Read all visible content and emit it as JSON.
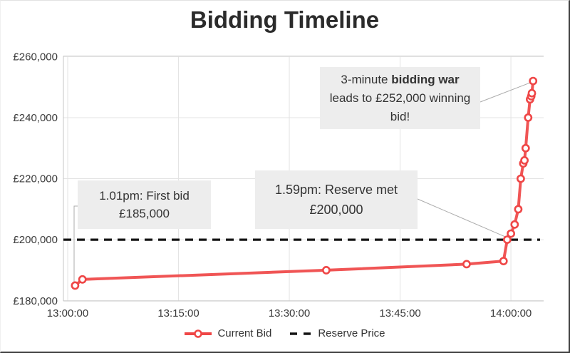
{
  "window": {
    "title": "Bidding Timeline"
  },
  "chart_data": {
    "type": "line",
    "title": "Bidding Timeline",
    "x_axis": {
      "ticks": [
        {
          "label": "13:00:00",
          "minutes": 0
        },
        {
          "label": "13:15:00",
          "minutes": 15
        },
        {
          "label": "13:30:00",
          "minutes": 30
        },
        {
          "label": "13:45:00",
          "minutes": 45
        },
        {
          "label": "14:00:00",
          "minutes": 60
        }
      ],
      "range_minutes": [
        -0.6,
        64.4
      ]
    },
    "y_axis": {
      "ticks": [
        {
          "label": "£180,000",
          "value": 180000
        },
        {
          "label": "£200,000",
          "value": 200000
        },
        {
          "label": "£220,000",
          "value": 220000
        },
        {
          "label": "£240,000",
          "value": 240000
        },
        {
          "label": "£260,000",
          "value": 260000
        }
      ],
      "range": [
        180000,
        260000
      ]
    },
    "grid": true,
    "legend_position": "bottom",
    "series": [
      {
        "name": "Current Bid",
        "color": "#ef4646",
        "marker": "open-circle",
        "points": [
          {
            "t": "13:01:00",
            "value": 185000
          },
          {
            "t": "13:02:00",
            "value": 187000
          },
          {
            "t": "13:35:00",
            "value": 190000
          },
          {
            "t": "13:54:00",
            "value": 192000
          },
          {
            "t": "13:59:00",
            "value": 193000
          },
          {
            "t": "13:59:30",
            "value": 200000
          },
          {
            "t": "14:00:00",
            "value": 202000
          },
          {
            "t": "14:00:30",
            "value": 205000
          },
          {
            "t": "14:01:00",
            "value": 210000
          },
          {
            "t": "14:01:20",
            "value": 220000
          },
          {
            "t": "14:01:40",
            "value": 225000
          },
          {
            "t": "14:01:50",
            "value": 226000
          },
          {
            "t": "14:02:00",
            "value": 230000
          },
          {
            "t": "14:02:20",
            "value": 240000
          },
          {
            "t": "14:02:35",
            "value": 246000
          },
          {
            "t": "14:02:45",
            "value": 247000
          },
          {
            "t": "14:02:50",
            "value": 248000
          },
          {
            "t": "14:03:00",
            "value": 252000
          }
        ]
      }
    ],
    "reserve_line": {
      "name": "Reserve Price",
      "value": 200000,
      "color": "#141414",
      "style": "dashed"
    },
    "annotations": [
      {
        "id": "first-bid",
        "lines": [
          "1.01pm: First bid",
          "£185,000"
        ],
        "attached_point": {
          "t": "13:01:00",
          "value": 185000
        }
      },
      {
        "id": "reserve-met",
        "lines": [
          "1.59pm: Reserve met",
          "£200,000"
        ],
        "attached_point": {
          "t": "13:59:30",
          "value": 200000
        }
      },
      {
        "id": "bidding-war",
        "text_parts": {
          "pre": "3-minute ",
          "bold": "bidding war",
          "post": " leads to £252,000 winning bid!"
        },
        "attached_point": {
          "t": "14:03:00",
          "value": 252000
        }
      }
    ]
  },
  "legend": {
    "items": [
      {
        "label": "Current Bid",
        "swatch": "red-line-open-circle",
        "color": "#ef4646"
      },
      {
        "label": "Reserve Price",
        "swatch": "black-dashes",
        "color": "#141414"
      }
    ]
  }
}
